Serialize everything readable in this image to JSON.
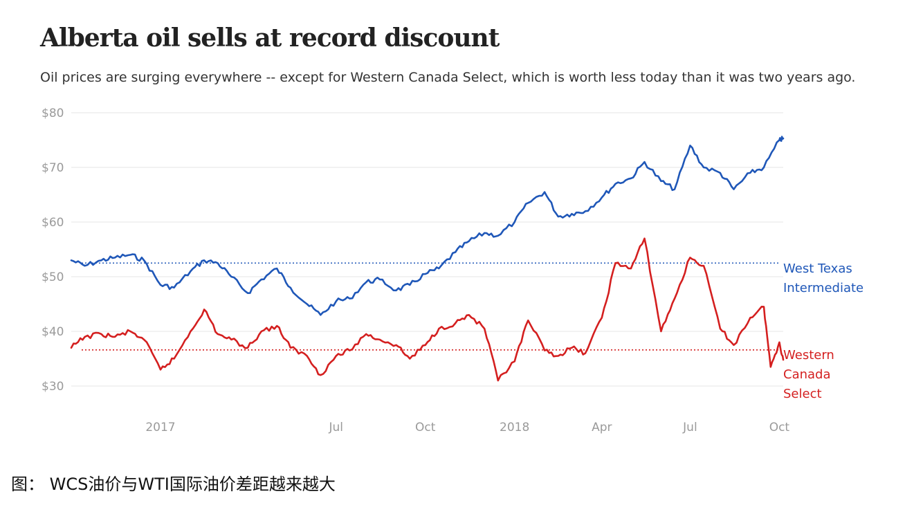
{
  "title": "Alberta oil sells at record discount",
  "subtitle": "Oil prices are surging everywhere -- except for Western Canada Select, which is worth less today than it was two years ago.",
  "caption": "图： WCS油价与WTI国际油价差距越来越大",
  "colors": {
    "wti": "#1f57b8",
    "wcs": "#d41f1f",
    "grid": "#e6e6e6",
    "tick": "#9a9a9a"
  },
  "chart_data": {
    "type": "line",
    "title": "Alberta oil sells at record discount",
    "subtitle": "Oil prices are surging everywhere -- except for Western Canada Select, which is worth less today than it was two years ago.",
    "x_ticks": [
      "2017",
      "Jul",
      "Oct",
      "2018",
      "Apr",
      "Jul",
      "Oct"
    ],
    "x_tick_dates": [
      "2017-01-01",
      "2017-07-01",
      "2017-10-01",
      "2018-01-01",
      "2018-04-01",
      "2018-07-01",
      "2018-10-01"
    ],
    "xlim": [
      "2016-10-01",
      "2018-10-05"
    ],
    "y_ticks": [
      "$30",
      "$40",
      "$50",
      "$60",
      "$70",
      "$80"
    ],
    "y_tick_values": [
      30,
      40,
      50,
      60,
      70,
      80
    ],
    "ylim": [
      30,
      80
    ],
    "grid": true,
    "series": [
      {
        "name": "West Texas Intermediate",
        "label_lines": [
          "West Texas",
          "Intermediate"
        ],
        "reference_value": 52.5,
        "points": [
          [
            "2016-10-01",
            53.0
          ],
          [
            "2016-10-15",
            52.0
          ],
          [
            "2016-11-01",
            53.0
          ],
          [
            "2016-11-15",
            53.5
          ],
          [
            "2016-12-01",
            54.0
          ],
          [
            "2016-12-15",
            53.0
          ],
          [
            "2017-01-01",
            48.5
          ],
          [
            "2017-01-15",
            48.0
          ],
          [
            "2017-02-01",
            51.0
          ],
          [
            "2017-02-15",
            53.0
          ],
          [
            "2017-03-01",
            52.5
          ],
          [
            "2017-03-15",
            50.0
          ],
          [
            "2017-04-01",
            47.0
          ],
          [
            "2017-04-15",
            49.5
          ],
          [
            "2017-05-01",
            51.5
          ],
          [
            "2017-05-15",
            48.0
          ],
          [
            "2017-06-01",
            45.0
          ],
          [
            "2017-06-15",
            43.0
          ],
          [
            "2017-07-01",
            45.5
          ],
          [
            "2017-07-15",
            46.0
          ],
          [
            "2017-08-01",
            49.0
          ],
          [
            "2017-08-15",
            49.5
          ],
          [
            "2017-09-01",
            47.5
          ],
          [
            "2017-09-15",
            48.5
          ],
          [
            "2017-10-01",
            50.5
          ],
          [
            "2017-10-15",
            51.5
          ],
          [
            "2017-11-01",
            54.5
          ],
          [
            "2017-11-15",
            56.5
          ],
          [
            "2017-12-01",
            58.0
          ],
          [
            "2017-12-15",
            57.5
          ],
          [
            "2018-01-01",
            60.0
          ],
          [
            "2018-01-15",
            63.5
          ],
          [
            "2018-02-01",
            65.5
          ],
          [
            "2018-02-15",
            61.0
          ],
          [
            "2018-03-01",
            61.5
          ],
          [
            "2018-03-15",
            62.0
          ],
          [
            "2018-04-01",
            64.5
          ],
          [
            "2018-04-15",
            67.0
          ],
          [
            "2018-05-01",
            68.0
          ],
          [
            "2018-05-15",
            71.0
          ],
          [
            "2018-06-01",
            67.5
          ],
          [
            "2018-06-15",
            66.0
          ],
          [
            "2018-07-01",
            74.0
          ],
          [
            "2018-07-15",
            70.0
          ],
          [
            "2018-08-01",
            69.0
          ],
          [
            "2018-08-15",
            66.0
          ],
          [
            "2018-09-01",
            69.0
          ],
          [
            "2018-09-15",
            70.0
          ],
          [
            "2018-10-01",
            75.0
          ],
          [
            "2018-10-05",
            75.3
          ]
        ]
      },
      {
        "name": "Western Canada Select",
        "label_lines": [
          "Western",
          "Canada",
          "Select"
        ],
        "reference_value": 36.6,
        "points": [
          [
            "2016-10-01",
            37.0
          ],
          [
            "2016-10-15",
            39.0
          ],
          [
            "2016-11-01",
            39.5
          ],
          [
            "2016-11-15",
            39.0
          ],
          [
            "2016-12-01",
            40.0
          ],
          [
            "2016-12-15",
            38.5
          ],
          [
            "2017-01-01",
            33.0
          ],
          [
            "2017-01-15",
            35.0
          ],
          [
            "2017-02-01",
            40.0
          ],
          [
            "2017-02-15",
            44.0
          ],
          [
            "2017-03-01",
            39.5
          ],
          [
            "2017-03-15",
            38.5
          ],
          [
            "2017-04-01",
            37.0
          ],
          [
            "2017-04-15",
            40.0
          ],
          [
            "2017-05-01",
            41.0
          ],
          [
            "2017-05-15",
            37.0
          ],
          [
            "2017-06-01",
            35.5
          ],
          [
            "2017-06-15",
            32.0
          ],
          [
            "2017-07-01",
            35.5
          ],
          [
            "2017-07-15",
            36.5
          ],
          [
            "2017-08-01",
            39.5
          ],
          [
            "2017-08-15",
            38.5
          ],
          [
            "2017-09-01",
            37.5
          ],
          [
            "2017-09-15",
            35.0
          ],
          [
            "2017-10-01",
            37.5
          ],
          [
            "2017-10-15",
            40.5
          ],
          [
            "2017-11-01",
            41.5
          ],
          [
            "2017-11-15",
            43.0
          ],
          [
            "2017-12-01",
            40.5
          ],
          [
            "2017-12-15",
            31.0
          ],
          [
            "2018-01-01",
            34.5
          ],
          [
            "2018-01-15",
            42.0
          ],
          [
            "2018-02-01",
            36.5
          ],
          [
            "2018-02-15",
            35.5
          ],
          [
            "2018-03-01",
            37.0
          ],
          [
            "2018-03-15",
            36.0
          ],
          [
            "2018-04-01",
            42.5
          ],
          [
            "2018-04-15",
            52.5
          ],
          [
            "2018-05-01",
            51.5
          ],
          [
            "2018-05-15",
            57.0
          ],
          [
            "2018-06-01",
            40.0
          ],
          [
            "2018-06-15",
            46.0
          ],
          [
            "2018-07-01",
            53.5
          ],
          [
            "2018-07-15",
            52.0
          ],
          [
            "2018-08-01",
            40.5
          ],
          [
            "2018-08-15",
            37.5
          ],
          [
            "2018-09-01",
            42.5
          ],
          [
            "2018-09-15",
            44.5
          ],
          [
            "2018-09-22",
            33.5
          ],
          [
            "2018-10-01",
            38.0
          ],
          [
            "2018-10-05",
            34.8
          ]
        ]
      }
    ]
  }
}
